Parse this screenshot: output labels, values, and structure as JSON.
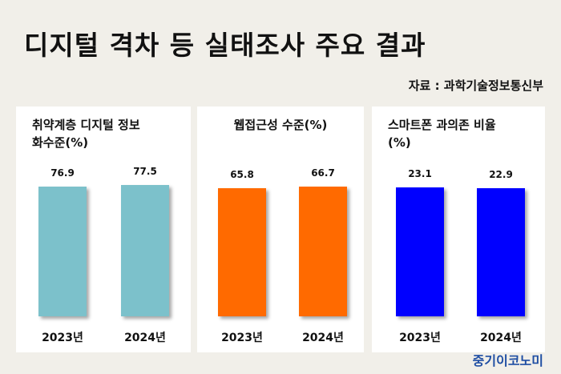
{
  "title": "디지털 격차 등 실태조사 주요 결과",
  "source": "자료 : 과학기술정보통신부",
  "brand": "중기이코노미",
  "chart_data": [
    {
      "type": "bar",
      "title": "취약계층 디지털 정보\n화수준(%)",
      "categories": [
        "2023년",
        "2024년"
      ],
      "values": [
        76.9,
        77.5
      ],
      "value_labels": [
        "76.9",
        "77.5"
      ],
      "color": "#7cc1cb",
      "ylim": [
        0,
        90
      ]
    },
    {
      "type": "bar",
      "title": "웹접근성 수준(%)",
      "categories": [
        "2023년",
        "2024년"
      ],
      "values": [
        65.8,
        66.7
      ],
      "value_labels": [
        "65.8",
        "66.7"
      ],
      "color": "#ff6a00",
      "ylim": [
        0,
        78
      ]
    },
    {
      "type": "bar",
      "title": "스마트폰 과의존 비율\n(%)",
      "categories": [
        "2023년",
        "2024년"
      ],
      "values": [
        23.1,
        22.9
      ],
      "value_labels": [
        "23.1",
        "22.9"
      ],
      "color": "#0000ff",
      "ylim": [
        0,
        27.2
      ]
    }
  ]
}
